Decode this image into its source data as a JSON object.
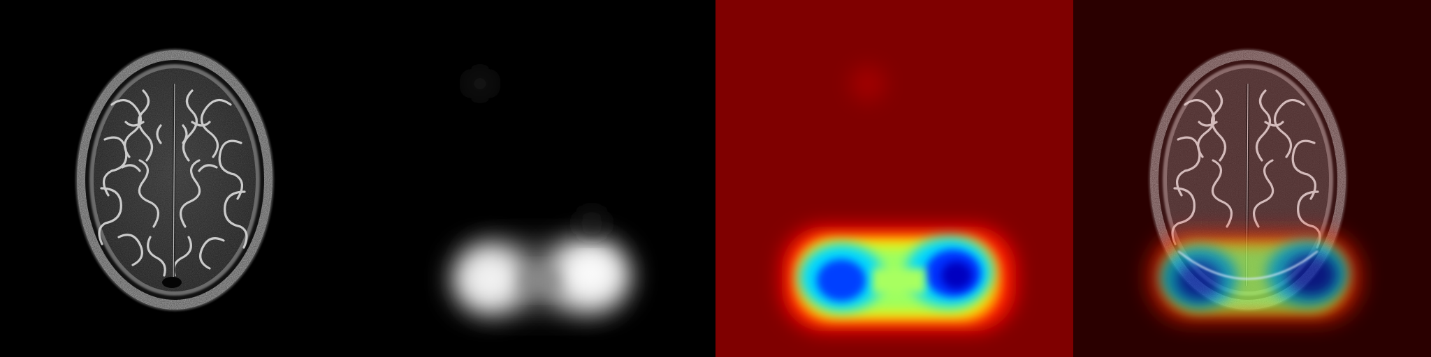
{
  "panels": [
    {
      "kind": "mri-slice",
      "background": "#000000"
    },
    {
      "kind": "grayscale-activation-map",
      "background": "#000000"
    },
    {
      "kind": "jet-colormap-heatmap",
      "background": "#7f0000"
    },
    {
      "kind": "heatmap-overlay-on-mri",
      "background": "#2a0000"
    }
  ],
  "colors": {
    "jet_low": "#00007f",
    "jet_blue": "#0030ff",
    "jet_cyan": "#00d8ff",
    "jet_green": "#9cff60",
    "jet_yellow": "#ffee00",
    "jet_orange": "#ff8000",
    "jet_red": "#ff1000",
    "jet_high": "#7f0000"
  }
}
